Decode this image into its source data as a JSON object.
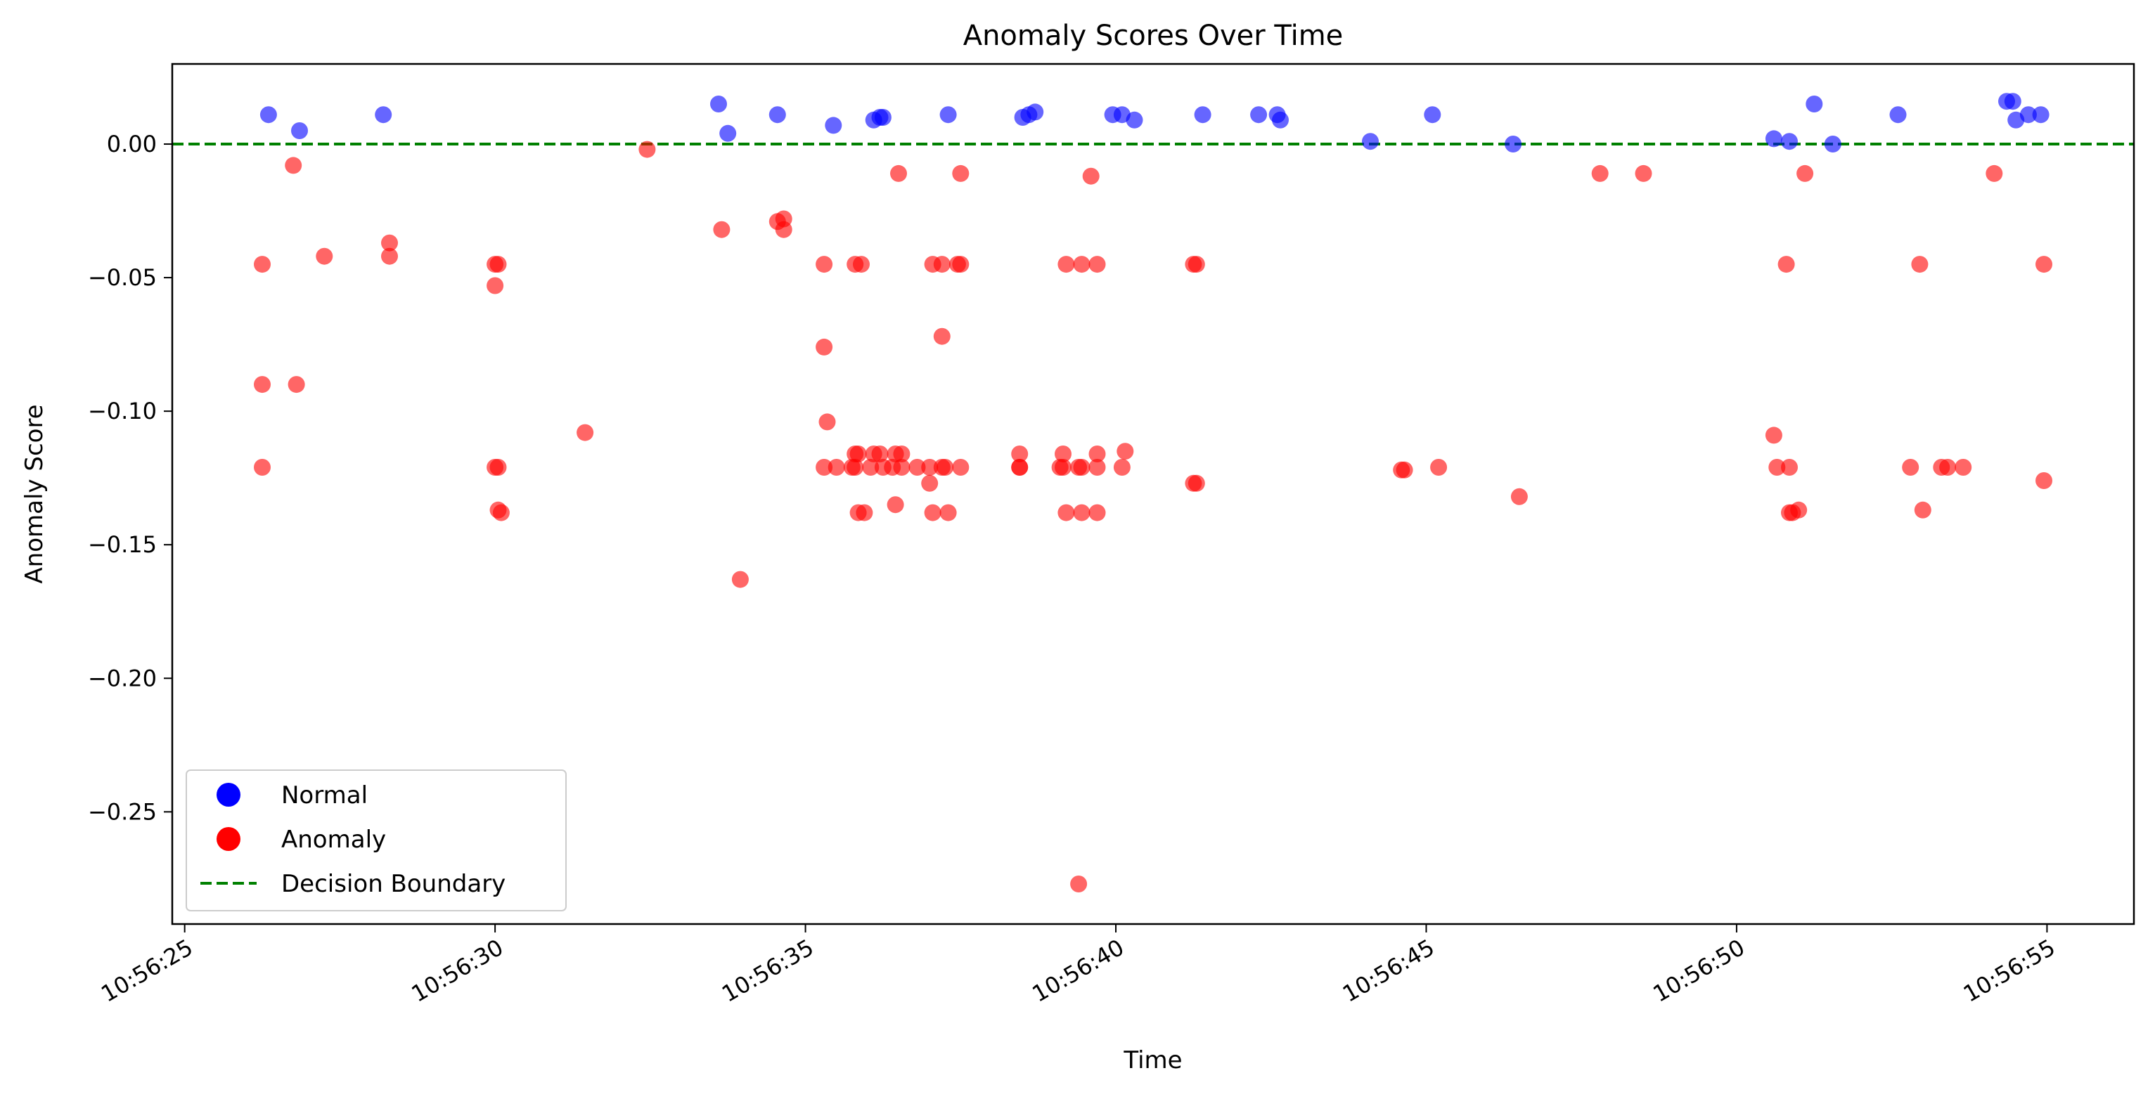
{
  "chart_data": {
    "type": "scatter",
    "title": "Anomaly Scores Over Time",
    "xlabel": "Time",
    "ylabel": "Anomaly Score",
    "xlim": [
      "10:56:24.80",
      "10:56:56.40"
    ],
    "ylim": [
      -0.292,
      0.03
    ],
    "x_ticks": [
      "10:56:25",
      "10:56:30",
      "10:56:35",
      "10:56:40",
      "10:56:45",
      "10:56:50",
      "10:56:55"
    ],
    "y_ticks": [
      0.0,
      -0.05,
      -0.1,
      -0.15,
      -0.2,
      -0.25
    ],
    "y_tick_labels": [
      "0.00",
      "−0.05",
      "−0.10",
      "−0.15",
      "−0.20",
      "−0.25"
    ],
    "grid": false,
    "legend_position": "lower-left",
    "legend": [
      {
        "label": "Normal",
        "marker": "circle",
        "color": "#0000ff"
      },
      {
        "label": "Anomaly",
        "marker": "circle",
        "color": "#ff0000"
      },
      {
        "label": "Decision Boundary",
        "marker": "dashed-line",
        "color": "#008000"
      }
    ],
    "decision_boundary": {
      "y": 0.0,
      "color": "#008000",
      "style": "dashed"
    },
    "series": [
      {
        "name": "Normal",
        "color": "#0000ff",
        "points": [
          [
            "10:56:26.35",
            0.011
          ],
          [
            "10:56:26.85",
            0.005
          ],
          [
            "10:56:28.20",
            0.011
          ],
          [
            "10:56:33.60",
            0.015
          ],
          [
            "10:56:33.75",
            0.004
          ],
          [
            "10:56:34.55",
            0.011
          ],
          [
            "10:56:35.45",
            0.007
          ],
          [
            "10:56:36.10",
            0.009
          ],
          [
            "10:56:36.20",
            0.01
          ],
          [
            "10:56:36.25",
            0.01
          ],
          [
            "10:56:37.30",
            0.011
          ],
          [
            "10:56:38.50",
            0.01
          ],
          [
            "10:56:38.60",
            0.011
          ],
          [
            "10:56:38.70",
            0.012
          ],
          [
            "10:56:39.95",
            0.011
          ],
          [
            "10:56:40.10",
            0.011
          ],
          [
            "10:56:40.30",
            0.009
          ],
          [
            "10:56:41.40",
            0.011
          ],
          [
            "10:56:42.30",
            0.011
          ],
          [
            "10:56:42.60",
            0.011
          ],
          [
            "10:56:42.65",
            0.009
          ],
          [
            "10:56:44.10",
            0.001
          ],
          [
            "10:56:45.10",
            0.011
          ],
          [
            "10:56:46.40",
            0.0
          ],
          [
            "10:56:50.60",
            0.002
          ],
          [
            "10:56:50.85",
            0.001
          ],
          [
            "10:56:51.25",
            0.015
          ],
          [
            "10:56:51.55",
            0.0
          ],
          [
            "10:56:52.60",
            0.011
          ],
          [
            "10:56:54.35",
            0.016
          ],
          [
            "10:56:54.45",
            0.016
          ],
          [
            "10:56:54.50",
            0.009
          ],
          [
            "10:56:54.70",
            0.011
          ],
          [
            "10:56:54.90",
            0.011
          ]
        ]
      },
      {
        "name": "Anomaly",
        "color": "#ff0000",
        "points": [
          [
            "10:56:26.25",
            -0.045
          ],
          [
            "10:56:26.25",
            -0.09
          ],
          [
            "10:56:26.25",
            -0.121
          ],
          [
            "10:56:26.75",
            -0.008
          ],
          [
            "10:56:26.80",
            -0.09
          ],
          [
            "10:56:27.25",
            -0.042
          ],
          [
            "10:56:28.30",
            -0.037
          ],
          [
            "10:56:28.30",
            -0.042
          ],
          [
            "10:56:30.00",
            -0.045
          ],
          [
            "10:56:30.05",
            -0.045
          ],
          [
            "10:56:30.00",
            -0.053
          ],
          [
            "10:56:30.00",
            -0.121
          ],
          [
            "10:56:30.05",
            -0.121
          ],
          [
            "10:56:30.05",
            -0.137
          ],
          [
            "10:56:30.10",
            -0.138
          ],
          [
            "10:56:31.45",
            -0.108
          ],
          [
            "10:56:32.45",
            -0.002
          ],
          [
            "10:56:33.65",
            -0.032
          ],
          [
            "10:56:33.95",
            -0.163
          ],
          [
            "10:56:34.55",
            -0.029
          ],
          [
            "10:56:34.65",
            -0.028
          ],
          [
            "10:56:34.65",
            -0.032
          ],
          [
            "10:56:35.30",
            -0.045
          ],
          [
            "10:56:35.30",
            -0.076
          ],
          [
            "10:56:35.35",
            -0.104
          ],
          [
            "10:56:35.30",
            -0.121
          ],
          [
            "10:56:35.50",
            -0.121
          ],
          [
            "10:56:35.75",
            -0.121
          ],
          [
            "10:56:35.80",
            -0.116
          ],
          [
            "10:56:35.85",
            -0.116
          ],
          [
            "10:56:35.80",
            -0.121
          ],
          [
            "10:56:35.80",
            -0.045
          ],
          [
            "10:56:35.90",
            -0.045
          ],
          [
            "10:56:35.85",
            -0.138
          ],
          [
            "10:56:35.95",
            -0.138
          ],
          [
            "10:56:36.05",
            -0.121
          ],
          [
            "10:56:36.10",
            -0.116
          ],
          [
            "10:56:36.20",
            -0.116
          ],
          [
            "10:56:36.25",
            -0.121
          ],
          [
            "10:56:36.40",
            -0.121
          ],
          [
            "10:56:36.45",
            -0.116
          ],
          [
            "10:56:36.50",
            -0.011
          ],
          [
            "10:56:36.55",
            -0.116
          ],
          [
            "10:56:36.45",
            -0.135
          ],
          [
            "10:56:36.55",
            -0.121
          ],
          [
            "10:56:36.80",
            -0.121
          ],
          [
            "10:56:37.00",
            -0.121
          ],
          [
            "10:56:37.00",
            -0.127
          ],
          [
            "10:56:37.05",
            -0.045
          ],
          [
            "10:56:37.05",
            -0.138
          ],
          [
            "10:56:37.20",
            -0.045
          ],
          [
            "10:56:37.20",
            -0.072
          ],
          [
            "10:56:37.20",
            -0.121
          ],
          [
            "10:56:37.25",
            -0.121
          ],
          [
            "10:56:37.30",
            -0.138
          ],
          [
            "10:56:37.45",
            -0.045
          ],
          [
            "10:56:37.50",
            -0.045
          ],
          [
            "10:56:37.50",
            -0.011
          ],
          [
            "10:56:37.50",
            -0.121
          ],
          [
            "10:56:38.45",
            -0.116
          ],
          [
            "10:56:38.45",
            -0.121
          ],
          [
            "10:56:38.45",
            -0.121
          ],
          [
            "10:56:39.10",
            -0.121
          ],
          [
            "10:56:39.15",
            -0.121
          ],
          [
            "10:56:39.15",
            -0.116
          ],
          [
            "10:56:39.20",
            -0.045
          ],
          [
            "10:56:39.20",
            -0.138
          ],
          [
            "10:56:39.40",
            -0.121
          ],
          [
            "10:56:39.45",
            -0.121
          ],
          [
            "10:56:39.45",
            -0.045
          ],
          [
            "10:56:39.45",
            -0.138
          ],
          [
            "10:56:39.40",
            -0.277
          ],
          [
            "10:56:39.60",
            -0.012
          ],
          [
            "10:56:39.70",
            -0.045
          ],
          [
            "10:56:39.70",
            -0.116
          ],
          [
            "10:56:39.70",
            -0.121
          ],
          [
            "10:56:39.70",
            -0.138
          ],
          [
            "10:56:40.10",
            -0.121
          ],
          [
            "10:56:40.15",
            -0.115
          ],
          [
            "10:56:41.25",
            -0.045
          ],
          [
            "10:56:41.30",
            -0.045
          ],
          [
            "10:56:41.25",
            -0.127
          ],
          [
            "10:56:41.30",
            -0.127
          ],
          [
            "10:56:44.60",
            -0.122
          ],
          [
            "10:56:44.65",
            -0.122
          ],
          [
            "10:56:45.20",
            -0.121
          ],
          [
            "10:56:46.50",
            -0.132
          ],
          [
            "10:56:47.80",
            -0.011
          ],
          [
            "10:56:48.50",
            -0.011
          ],
          [
            "10:56:50.60",
            -0.109
          ],
          [
            "10:56:50.65",
            -0.121
          ],
          [
            "10:56:50.80",
            -0.045
          ],
          [
            "10:56:50.85",
            -0.121
          ],
          [
            "10:56:50.85",
            -0.138
          ],
          [
            "10:56:50.90",
            -0.138
          ],
          [
            "10:56:51.00",
            -0.137
          ],
          [
            "10:56:51.10",
            -0.011
          ],
          [
            "10:56:52.80",
            -0.121
          ],
          [
            "10:56:52.95",
            -0.045
          ],
          [
            "10:56:53.00",
            -0.137
          ],
          [
            "10:56:53.30",
            -0.121
          ],
          [
            "10:56:53.40",
            -0.121
          ],
          [
            "10:56:53.65",
            -0.121
          ],
          [
            "10:56:54.15",
            -0.011
          ],
          [
            "10:56:54.95",
            -0.045
          ],
          [
            "10:56:54.95",
            -0.126
          ]
        ]
      }
    ]
  }
}
